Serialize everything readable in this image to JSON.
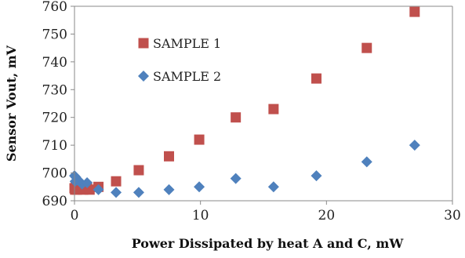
{
  "chart_data": {
    "type": "scatter",
    "title": "",
    "xlabel": "Power Dissipated by heat A and C, mW",
    "ylabel": "Sensor Vout, mV",
    "xlim": [
      0,
      30
    ],
    "ylim": [
      690,
      760
    ],
    "x_ticks": [
      0,
      10,
      20,
      30
    ],
    "y_ticks": [
      690,
      700,
      710,
      720,
      730,
      740,
      750,
      760
    ],
    "grid": false,
    "legend_position": "upper-left-inside",
    "series": [
      {
        "name": "SAMPLE 1",
        "marker": "square",
        "color": "#c0504d",
        "x": [
          0.0,
          0.05,
          0.1,
          0.2,
          0.3,
          0.5,
          0.7,
          1.0,
          1.2,
          1.9,
          3.3,
          5.1,
          7.5,
          9.9,
          12.8,
          15.8,
          19.2,
          23.2,
          27.0
        ],
        "y": [
          694.5,
          694.0,
          695.5,
          694.0,
          695.0,
          694.5,
          694.0,
          695.0,
          694.0,
          695.0,
          697.0,
          701.0,
          706.0,
          712.0,
          720.0,
          723.0,
          734.0,
          745.0,
          758.0
        ]
      },
      {
        "name": "SAMPLE 2",
        "marker": "diamond",
        "color": "#4f81bd",
        "x": [
          0.0,
          0.05,
          0.1,
          0.2,
          0.4,
          0.6,
          1.0,
          1.9,
          3.3,
          5.1,
          7.5,
          9.9,
          12.8,
          15.8,
          19.2,
          23.2,
          27.0
        ],
        "y": [
          699.0,
          697.0,
          698.5,
          697.5,
          697.0,
          696.0,
          696.5,
          694.0,
          693.0,
          693.0,
          694.0,
          695.0,
          698.0,
          695.0,
          699.0,
          704.0,
          710.0
        ]
      }
    ]
  }
}
